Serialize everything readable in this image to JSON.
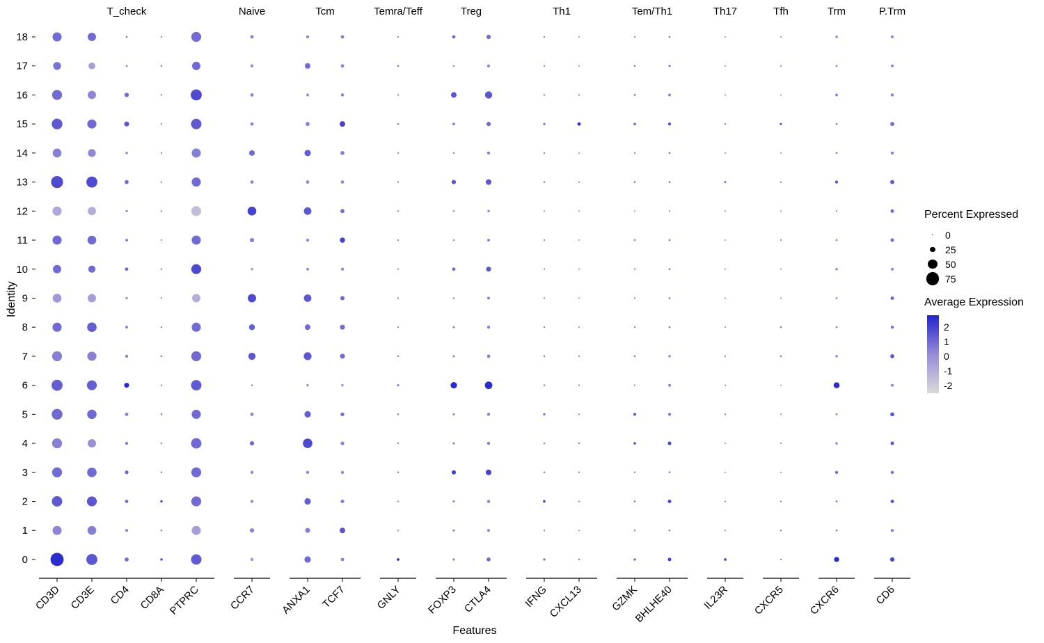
{
  "chart_data": {
    "type": "scatter",
    "subtype": "dot-plot",
    "title": "",
    "xlabel": "Features",
    "ylabel": "Identity",
    "identities": [
      18,
      17,
      16,
      15,
      14,
      13,
      12,
      11,
      10,
      9,
      8,
      7,
      6,
      5,
      4,
      3,
      2,
      1,
      0
    ],
    "panels": [
      {
        "label": "T_check",
        "genes": [
          "CD3D",
          "CD3E",
          "CD4",
          "CD8A",
          "PTPRC"
        ]
      },
      {
        "label": "Naive",
        "genes": [
          "CCR7"
        ]
      },
      {
        "label": "Tcm",
        "genes": [
          "ANXA1",
          "TCF7"
        ]
      },
      {
        "label": "Temra/Teff",
        "genes": [
          "GNLY"
        ]
      },
      {
        "label": "Treg",
        "genes": [
          "FOXP3",
          "CTLA4"
        ]
      },
      {
        "label": "Th1",
        "genes": [
          "IFNG",
          "CXCL13"
        ]
      },
      {
        "label": "Tem/Th1",
        "genes": [
          "GZMK",
          "BHLHE40"
        ]
      },
      {
        "label": "Th17",
        "genes": [
          "IL23R"
        ]
      },
      {
        "label": "Tfh",
        "genes": [
          "CXCR5"
        ]
      },
      {
        "label": "Trm",
        "genes": [
          "CXCR6"
        ]
      },
      {
        "label": "P.Trm",
        "genes": [
          "CD6"
        ]
      }
    ],
    "genes": {
      "CD3D": {
        "percent": [
          50,
          42,
          55,
          60,
          48,
          68,
          50,
          50,
          45,
          48,
          50,
          55,
          62,
          60,
          55,
          55,
          58,
          50,
          75
        ],
        "avg": [
          1,
          0.8,
          1,
          1.4,
          0.5,
          1.8,
          -0.8,
          1,
          1,
          -0.3,
          1,
          0.5,
          1.3,
          1,
          0.5,
          1,
          1.4,
          0.3,
          2.6
        ]
      },
      "CD3E": {
        "percent": [
          45,
          35,
          45,
          50,
          42,
          62,
          45,
          48,
          38,
          45,
          52,
          50,
          55,
          52,
          45,
          52,
          55,
          48,
          62
        ],
        "avg": [
          1,
          -0.5,
          0.3,
          1,
          0.3,
          1.8,
          -1,
          1,
          1,
          -0.5,
          1.3,
          0.5,
          1.3,
          1,
          0,
          1,
          1.5,
          0.5,
          1.5
        ]
      },
      "CD4": {
        "percent": [
          5,
          5,
          20,
          24,
          8,
          18,
          8,
          10,
          14,
          8,
          10,
          12,
          24,
          14,
          12,
          16,
          14,
          12,
          18
        ],
        "avg": [
          0.5,
          0.5,
          1,
          1.5,
          0.5,
          1,
          0,
          0.5,
          1,
          0,
          0.5,
          0.5,
          2.6,
          0.5,
          0.5,
          1,
          1,
          0.3,
          1
        ]
      },
      "CD8A": {
        "percent": [
          3,
          4,
          3,
          3,
          3,
          3,
          3,
          3,
          3,
          3,
          3,
          4,
          3,
          4,
          3,
          4,
          8,
          4,
          8
        ],
        "avg": [
          0.5,
          0.5,
          0.5,
          0.5,
          0.5,
          0.5,
          0.5,
          0.5,
          0.5,
          0.5,
          0.5,
          0.5,
          0.5,
          0.5,
          0.5,
          0.5,
          2,
          0.5,
          2
        ]
      },
      "PTPRC": {
        "percent": [
          55,
          45,
          62,
          58,
          50,
          50,
          55,
          50,
          55,
          45,
          50,
          55,
          58,
          50,
          58,
          55,
          55,
          50,
          58
        ],
        "avg": [
          1,
          1,
          1.8,
          1.4,
          0.5,
          1,
          -1.6,
          1,
          1.8,
          -1,
          1,
          1,
          1.4,
          1,
          1,
          1,
          1,
          -0.5,
          1.4
        ]
      },
      "CCR7": {
        "percent": [
          14,
          12,
          14,
          14,
          28,
          14,
          48,
          20,
          8,
          45,
          30,
          38,
          5,
          14,
          20,
          12,
          12,
          20,
          12
        ],
        "avg": [
          0.5,
          0.3,
          0.3,
          0.3,
          1,
          0.3,
          2,
          0.5,
          0,
          1.8,
          1.3,
          1.5,
          0,
          0.5,
          1,
          0.3,
          0.3,
          0.5,
          0
        ]
      },
      "ANXA1": {
        "percent": [
          12,
          28,
          10,
          18,
          33,
          14,
          40,
          12,
          10,
          40,
          28,
          42,
          8,
          33,
          52,
          12,
          33,
          24,
          33
        ],
        "avg": [
          0.3,
          1,
          0.3,
          0.5,
          1.3,
          0.3,
          1.5,
          0.3,
          0.3,
          1.5,
          1,
          1.5,
          0,
          1.3,
          1.8,
          0.3,
          1.3,
          0.5,
          1
        ]
      },
      "TCF7": {
        "percent": [
          14,
          14,
          12,
          28,
          18,
          14,
          18,
          26,
          12,
          20,
          24,
          24,
          8,
          16,
          16,
          12,
          16,
          28,
          14
        ],
        "avg": [
          0.5,
          0.5,
          0.5,
          2,
          0.5,
          0.3,
          1,
          2,
          0.3,
          1,
          1,
          1,
          0,
          1,
          0.5,
          0.3,
          0.5,
          1.5,
          0.5
        ]
      },
      "GNLY": {
        "percent": [
          3,
          5,
          3,
          4,
          3,
          3,
          3,
          3,
          3,
          3,
          3,
          4,
          7,
          4,
          3,
          4,
          3,
          3,
          9
        ],
        "avg": [
          0.5,
          0.5,
          0.5,
          0.5,
          0.5,
          0.5,
          0.5,
          0.5,
          0.5,
          0.5,
          0.5,
          0.5,
          0.5,
          0.5,
          0.5,
          0.5,
          0.5,
          0.5,
          2.6
        ]
      },
      "FOXP3": {
        "percent": [
          14,
          4,
          28,
          10,
          4,
          20,
          4,
          4,
          14,
          4,
          7,
          7,
          33,
          7,
          7,
          20,
          7,
          7,
          7
        ],
        "avg": [
          1,
          0.3,
          1.5,
          0.5,
          0.3,
          1.5,
          0.3,
          0.3,
          1,
          0.3,
          0.3,
          0.3,
          2.6,
          0.3,
          0.3,
          2,
          0.3,
          0.3,
          0.5
        ]
      },
      "CTLA4": {
        "percent": [
          20,
          10,
          38,
          20,
          12,
          28,
          8,
          10,
          24,
          10,
          12,
          14,
          40,
          12,
          12,
          28,
          12,
          10,
          18
        ],
        "avg": [
          1,
          0.5,
          1.5,
          1,
          0.5,
          1.5,
          0.3,
          0.5,
          1.5,
          0.5,
          0.5,
          0.5,
          2.6,
          0.5,
          0.5,
          2,
          0.5,
          0.5,
          1
        ]
      },
      "IFNG": {
        "percent": [
          3,
          3,
          3,
          7,
          3,
          4,
          2,
          3,
          3,
          3,
          3,
          4,
          4,
          7,
          4,
          4,
          9,
          3,
          7
        ],
        "avg": [
          0.5,
          0.5,
          0.5,
          1,
          0.5,
          0.5,
          0.3,
          0.5,
          0.5,
          0.5,
          0.5,
          0.5,
          0.5,
          1,
          0.5,
          0.5,
          2,
          0.5,
          1
        ]
      },
      "CXCL13": {
        "percent": [
          2,
          2,
          3,
          14,
          2,
          3,
          2,
          2,
          2,
          2,
          2,
          3,
          3,
          3,
          3,
          3,
          3,
          2,
          4
        ],
        "avg": [
          0.3,
          0.3,
          0.5,
          2.6,
          0.3,
          0.5,
          0.3,
          0.3,
          0.3,
          0.3,
          0.3,
          0.5,
          0.5,
          0.5,
          0.5,
          0.5,
          0.5,
          0.3,
          0.5
        ]
      },
      "GZMK": {
        "percent": [
          3,
          5,
          5,
          9,
          3,
          5,
          2,
          5,
          3,
          3,
          3,
          5,
          3,
          11,
          9,
          4,
          5,
          4,
          8
        ],
        "avg": [
          0.5,
          0.5,
          0.5,
          1,
          0.5,
          0.5,
          0.3,
          0.5,
          0.5,
          0.5,
          0.5,
          0.5,
          0.5,
          1.5,
          1.5,
          0.5,
          0.5,
          0.5,
          1
        ]
      },
      "BHLHE40": {
        "percent": [
          5,
          7,
          10,
          12,
          5,
          5,
          3,
          5,
          5,
          5,
          5,
          8,
          10,
          10,
          15,
          5,
          15,
          5,
          15
        ],
        "avg": [
          0.5,
          0.5,
          0.5,
          1.5,
          0.5,
          0.5,
          0.3,
          0.5,
          0.5,
          0.5,
          0.5,
          0.5,
          0.5,
          1,
          2,
          0.5,
          2,
          0.5,
          2
        ]
      },
      "IL23R": {
        "percent": [
          2,
          2,
          2,
          3,
          2,
          5,
          2,
          2,
          2,
          2,
          2,
          3,
          3,
          3,
          2,
          2,
          3,
          2,
          9
        ],
        "avg": [
          0.3,
          0.3,
          0.3,
          0.5,
          0.3,
          1.5,
          0.3,
          0.3,
          0.3,
          0.3,
          0.3,
          0.5,
          0.5,
          0.5,
          0.3,
          0.3,
          0.5,
          0.3,
          2
        ]
      },
      "CXCR5": {
        "percent": [
          2,
          3,
          2,
          6,
          2,
          3,
          2,
          3,
          2,
          2,
          5,
          5,
          2,
          2,
          2,
          2,
          3,
          4,
          3
        ],
        "avg": [
          0.3,
          0.3,
          0.3,
          2,
          0.3,
          0.5,
          0.3,
          0.5,
          0.3,
          0.3,
          0.5,
          0.5,
          0.3,
          0.3,
          0.3,
          0.3,
          0.5,
          0.5,
          0.5
        ]
      },
      "CXCR6": {
        "percent": [
          8,
          5,
          10,
          5,
          5,
          12,
          3,
          5,
          8,
          5,
          5,
          8,
          30,
          5,
          8,
          12,
          5,
          5,
          25
        ],
        "avg": [
          0.5,
          0.5,
          0.5,
          0.5,
          0.5,
          1.5,
          0.3,
          0.5,
          0.5,
          0.5,
          0.5,
          0.5,
          2.6,
          0.5,
          0.5,
          1,
          0.5,
          0.5,
          2.6
        ]
      },
      "CD6": {
        "percent": [
          10,
          10,
          12,
          18,
          12,
          18,
          15,
          15,
          10,
          15,
          12,
          18,
          10,
          18,
          15,
          12,
          15,
          12,
          20
        ],
        "avg": [
          0.5,
          0.5,
          0.5,
          1,
          0.5,
          1.5,
          1,
          1,
          0.5,
          1,
          1,
          1.5,
          0.5,
          1.5,
          1.5,
          1,
          1.5,
          0.5,
          2
        ]
      }
    },
    "legend_size": {
      "title": "Percent Expressed",
      "ticks": [
        0,
        25,
        50,
        75
      ]
    },
    "legend_color": {
      "title": "Average Expression",
      "ticks": [
        2,
        1,
        0,
        -1,
        -2
      ],
      "low_color": "#d9d9d9",
      "mid_color": "#968cd7",
      "high_color": "#2323cd",
      "domain": [
        -2.5,
        2.8
      ]
    }
  }
}
